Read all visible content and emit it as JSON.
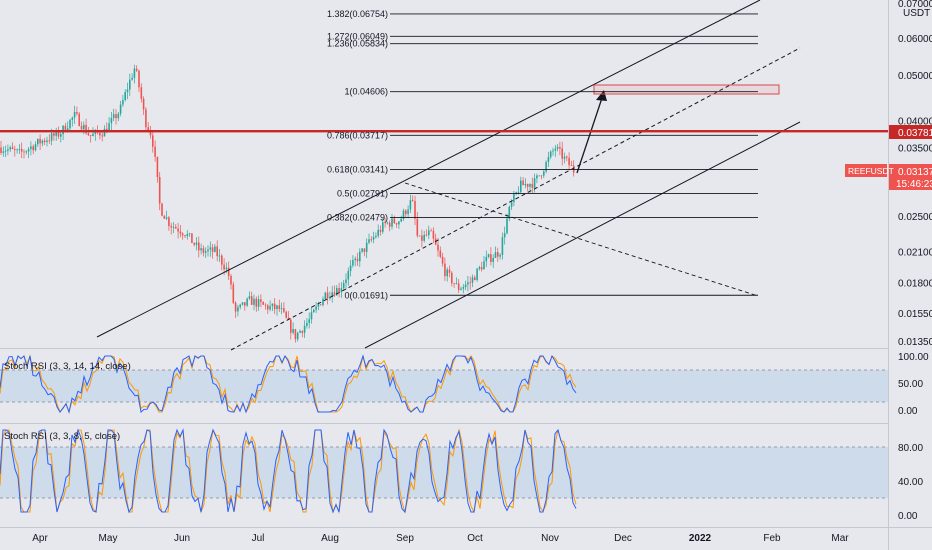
{
  "symbol": {
    "ticker": "REEFUSDT",
    "last_price": "0.03137",
    "countdown": "15:46:23",
    "quote": "USDT"
  },
  "price_axis": {
    "labels": [
      "0.07000",
      "0.06000",
      "0.05000",
      "0.04000",
      "0.03500",
      "0.02500",
      "0.02100",
      "0.01800",
      "0.01550",
      "0.01350"
    ],
    "values": [
      0.07,
      0.06,
      0.05,
      0.04,
      0.035,
      0.025,
      0.021,
      0.018,
      0.0155,
      0.0135
    ],
    "resistance_label": "0.03781",
    "resistance_value": 0.03781
  },
  "fib_levels": [
    {
      "label": "1.382(0.06754)",
      "value": 0.06754
    },
    {
      "label": "1.272(0.06049)",
      "value": 0.06049
    },
    {
      "label": "1.236(0.05834)",
      "value": 0.05834
    },
    {
      "label": "1(0.04606)",
      "value": 0.04606
    },
    {
      "label": "0.786(0.03717)",
      "value": 0.03717
    },
    {
      "label": "0.618(0.03141)",
      "value": 0.03141
    },
    {
      "label": "0.5(0.02791)",
      "value": 0.02791
    },
    {
      "label": "0.382(0.02479)",
      "value": 0.02479
    },
    {
      "label": "0(0.01691)",
      "value": 0.01691
    }
  ],
  "time_axis": {
    "labels": [
      "Apr",
      "May",
      "Jun",
      "Jul",
      "Aug",
      "Sep",
      "Oct",
      "Nov",
      "Dec",
      "2022",
      "Feb",
      "Mar"
    ]
  },
  "indicators": [
    {
      "title": "Stoch RSI (3, 3, 14, 14, close)",
      "levels": [
        "100.00",
        "50.00",
        "0.00"
      ]
    },
    {
      "title": "Stoch RSI (3, 3, 8, 5, close)",
      "levels": [
        "80.00",
        "40.00",
        "0.00"
      ]
    }
  ],
  "colors": {
    "background": "#e6e8ed",
    "bull_candle": "#26a69a",
    "bear_candle": "#ef5350",
    "resistance": "#c62828",
    "price_tag": "#ef5350",
    "stoch_k": "#2962ff",
    "stoch_d": "#ff9800",
    "band": "#c4d7ea"
  }
}
